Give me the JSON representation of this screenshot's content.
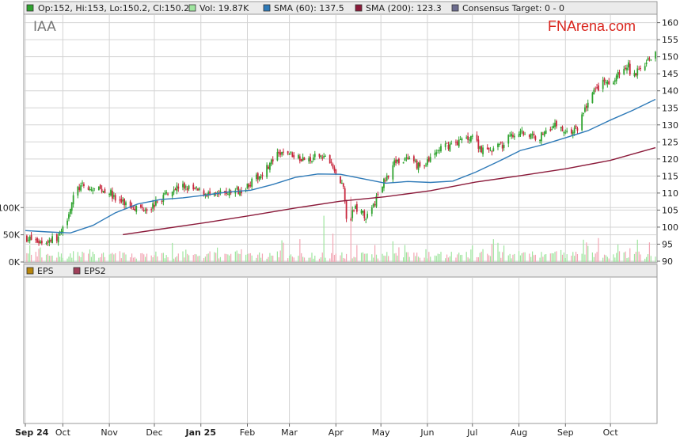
{
  "legend": {
    "ohlc": "Op:152, Hi:153, Lo:150.2, Cl:150.2",
    "vol": "Vol: 19.87K",
    "sma60": "SMA (60): 137.5",
    "sma200": "SMA (200): 123.3",
    "consensus": "Consensus Target: 0 - 0"
  },
  "symbol": "IAA",
  "brand": "FNArena.com",
  "lower_legend": {
    "eps": "EPS",
    "eps2": "EPS2"
  },
  "colors": {
    "up": "#2fa32f",
    "down": "#c8283e",
    "sma60": "#2e7ab8",
    "sma200": "#8b1a3a",
    "vol_up": "#9fe59f",
    "vol_down": "#f2a6b4",
    "brand": "#d9251d",
    "grid": "#d4d4d4",
    "panel_header": "#e8e8e8",
    "consensus": "#6b6b8e",
    "eps": "#b8860b",
    "eps2": "#a0405a"
  },
  "chart_data": {
    "type": "candlestick",
    "title": "IAA",
    "price_axis": {
      "ticks": [
        90,
        95,
        100,
        105,
        110,
        115,
        120,
        125,
        130,
        135,
        140,
        145,
        150,
        155,
        160
      ],
      "range": [
        90,
        162
      ]
    },
    "volume_axis": {
      "ticks": [
        "0K",
        "50K",
        "100K"
      ],
      "range": [
        0,
        160000
      ]
    },
    "x_ticks": [
      {
        "label": "Sep 24",
        "day": 0,
        "bold": true
      },
      {
        "label": "Oct",
        "day": 25
      },
      {
        "label": "Nov",
        "day": 56
      },
      {
        "label": "Dec",
        "day": 86
      },
      {
        "label": "Jan 25",
        "day": 117,
        "bold": true
      },
      {
        "label": "Feb",
        "day": 148
      },
      {
        "label": "Mar",
        "day": 176
      },
      {
        "label": "Apr",
        "day": 207
      },
      {
        "label": "May",
        "day": 237
      },
      {
        "label": "Jun",
        "day": 268
      },
      {
        "label": "Jul",
        "day": 298
      },
      {
        "label": "Aug",
        "day": 329
      },
      {
        "label": "Sep",
        "day": 360
      },
      {
        "label": "Oct",
        "day": 390
      }
    ],
    "date_span_days": 420,
    "close_path": [
      [
        0,
        97
      ],
      [
        6,
        96
      ],
      [
        12,
        95.5
      ],
      [
        18,
        96.5
      ],
      [
        22,
        97
      ],
      [
        26,
        100
      ],
      [
        30,
        106
      ],
      [
        34,
        111
      ],
      [
        38,
        112
      ],
      [
        42,
        111
      ],
      [
        50,
        111
      ],
      [
        56,
        110.5
      ],
      [
        60,
        108
      ],
      [
        66,
        107
      ],
      [
        72,
        106
      ],
      [
        78,
        105.5
      ],
      [
        84,
        106
      ],
      [
        90,
        108
      ],
      [
        96,
        111
      ],
      [
        104,
        112
      ],
      [
        112,
        111
      ],
      [
        120,
        110
      ],
      [
        126,
        109
      ],
      [
        132,
        110
      ],
      [
        138,
        110.5
      ],
      [
        144,
        111
      ],
      [
        150,
        113
      ],
      [
        156,
        115
      ],
      [
        162,
        118
      ],
      [
        168,
        121
      ],
      [
        174,
        122
      ],
      [
        180,
        121
      ],
      [
        186,
        120
      ],
      [
        190,
        119
      ],
      [
        194,
        121
      ],
      [
        198,
        121
      ],
      [
        204,
        118
      ],
      [
        208,
        115
      ],
      [
        212,
        112
      ],
      [
        214,
        103
      ],
      [
        216,
        100
      ],
      [
        218,
        104
      ],
      [
        220,
        106
      ],
      [
        224,
        104
      ],
      [
        228,
        103
      ],
      [
        232,
        106
      ],
      [
        236,
        111
      ],
      [
        240,
        114
      ],
      [
        246,
        119
      ],
      [
        252,
        120
      ],
      [
        258,
        119
      ],
      [
        262,
        118
      ],
      [
        266,
        118
      ],
      [
        270,
        120
      ],
      [
        276,
        123
      ],
      [
        282,
        124
      ],
      [
        288,
        125
      ],
      [
        294,
        126
      ],
      [
        298,
        127
      ],
      [
        302,
        124
      ],
      [
        306,
        122
      ],
      [
        312,
        123
      ],
      [
        318,
        124
      ],
      [
        324,
        127
      ],
      [
        330,
        128
      ],
      [
        336,
        127
      ],
      [
        342,
        126
      ],
      [
        348,
        129
      ],
      [
        354,
        130
      ],
      [
        360,
        128
      ],
      [
        364,
        128
      ],
      [
        368,
        129
      ],
      [
        372,
        134
      ],
      [
        378,
        139
      ],
      [
        384,
        142
      ],
      [
        390,
        143
      ],
      [
        394,
        144
      ],
      [
        398,
        147
      ],
      [
        402,
        148
      ],
      [
        404,
        142
      ],
      [
        406,
        145
      ],
      [
        410,
        147
      ],
      [
        414,
        148
      ],
      [
        418,
        151
      ],
      [
        420,
        152
      ]
    ],
    "sma60_path": [
      [
        0,
        99
      ],
      [
        15,
        98.6
      ],
      [
        30,
        98.3
      ],
      [
        45,
        100.5
      ],
      [
        60,
        104.2
      ],
      [
        75,
        106.8
      ],
      [
        90,
        108.1
      ],
      [
        105,
        108.6
      ],
      [
        120,
        109.4
      ],
      [
        135,
        110.3
      ],
      [
        150,
        110.8
      ],
      [
        165,
        112.5
      ],
      [
        180,
        114.6
      ],
      [
        195,
        115.6
      ],
      [
        210,
        115.5
      ],
      [
        225,
        114.2
      ],
      [
        240,
        112.9
      ],
      [
        255,
        113.4
      ],
      [
        270,
        113.1
      ],
      [
        285,
        113.5
      ],
      [
        300,
        116.1
      ],
      [
        315,
        119.2
      ],
      [
        330,
        122.5
      ],
      [
        345,
        124.2
      ],
      [
        360,
        126.2
      ],
      [
        375,
        128.3
      ],
      [
        390,
        131.4
      ],
      [
        405,
        134.3
      ],
      [
        420,
        137.5
      ]
    ],
    "sma200_path": [
      [
        65,
        97.8
      ],
      [
        90,
        99.4
      ],
      [
        120,
        101.3
      ],
      [
        150,
        103.4
      ],
      [
        180,
        105.6
      ],
      [
        210,
        107.6
      ],
      [
        240,
        108.9
      ],
      [
        270,
        110.7
      ],
      [
        300,
        113.2
      ],
      [
        330,
        115.1
      ],
      [
        360,
        117.1
      ],
      [
        390,
        119.6
      ],
      [
        420,
        123.3
      ]
    ],
    "volume_spikes": [
      [
        69,
        58000
      ],
      [
        183,
        42000
      ],
      [
        199,
        85000
      ],
      [
        205,
        52000
      ],
      [
        215,
        155000
      ],
      [
        217,
        120000
      ],
      [
        245,
        38000
      ],
      [
        312,
        42000
      ],
      [
        372,
        41000
      ],
      [
        374,
        36000
      ],
      [
        382,
        44000
      ],
      [
        384,
        34000
      ],
      [
        408,
        41000
      ],
      [
        416,
        36000
      ]
    ]
  }
}
